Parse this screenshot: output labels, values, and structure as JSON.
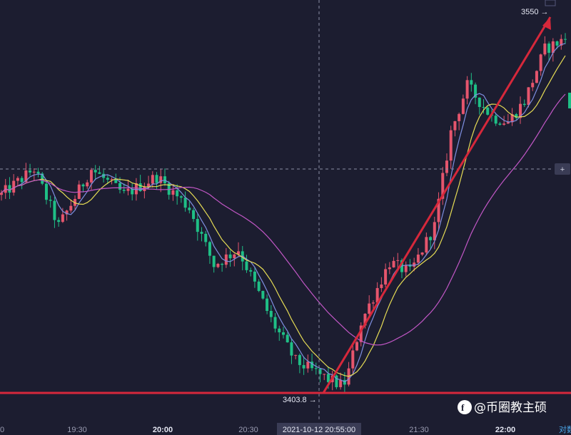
{
  "chart_data": {
    "type": "candlestick",
    "x_ticks": [
      "19:30",
      "20:00",
      "20:30",
      "20:55",
      "21:30",
      "22:00"
    ],
    "crosshair_time_label": "2021-10-12 20:55:00",
    "crosshair_price_label": "+",
    "low_marker_label": "3403.8 →",
    "high_marker_label": "3550 →",
    "support_price": 3403.8,
    "trend_line": {
      "from_price": 3403.8,
      "to_price": 3550
    },
    "y_range": [
      3398,
      3556
    ],
    "candle_count": 139,
    "price_keypoints": [
      {
        "i": 0,
        "p": 3480
      },
      {
        "i": 8,
        "p": 3490
      },
      {
        "i": 14,
        "p": 3468
      },
      {
        "i": 22,
        "p": 3490
      },
      {
        "i": 30,
        "p": 3480
      },
      {
        "i": 38,
        "p": 3487
      },
      {
        "i": 46,
        "p": 3475
      },
      {
        "i": 52,
        "p": 3453
      },
      {
        "i": 58,
        "p": 3459
      },
      {
        "i": 66,
        "p": 3432
      },
      {
        "i": 72,
        "p": 3416
      },
      {
        "i": 80,
        "p": 3409
      },
      {
        "i": 84,
        "p": 3406
      },
      {
        "i": 88,
        "p": 3431
      },
      {
        "i": 95,
        "p": 3454
      },
      {
        "i": 100,
        "p": 3450
      },
      {
        "i": 106,
        "p": 3468
      },
      {
        "i": 110,
        "p": 3504
      },
      {
        "i": 114,
        "p": 3522
      },
      {
        "i": 120,
        "p": 3510
      },
      {
        "i": 124,
        "p": 3508
      },
      {
        "i": 128,
        "p": 3516
      },
      {
        "i": 133,
        "p": 3536
      },
      {
        "i": 138,
        "p": 3540
      }
    ],
    "moving_averages": [
      {
        "period": 5,
        "color": "#7e8fe0"
      },
      {
        "period": 10,
        "color": "#e6dc55"
      },
      {
        "period": 30,
        "color": "#c257c6"
      }
    ],
    "colors": {
      "up": "#e5556d",
      "down": "#1fbf86",
      "line": "#d6283b",
      "background": "#1c1d30"
    }
  },
  "watermark": {
    "text": "@币圈教主硕"
  },
  "corner_label": "对数"
}
